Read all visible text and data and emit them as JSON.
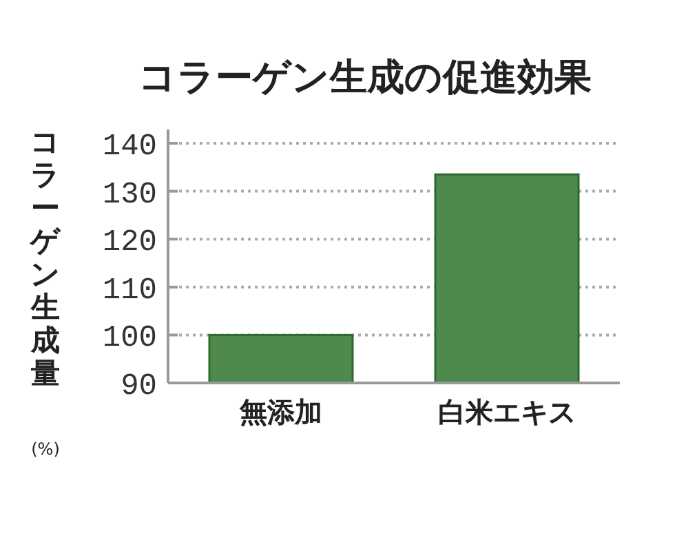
{
  "chart_data": {
    "type": "bar",
    "title": "コラーゲン生成の促進効果",
    "ylabel": "コラーゲン生成量",
    "annotations": [
      "(%)"
    ],
    "categories": [
      "無添加",
      "白米エキス"
    ],
    "values": [
      100,
      133.5
    ],
    "color": "#4e8a4c",
    "ylim": [
      90,
      140
    ],
    "yticks": [
      90,
      100,
      110,
      120,
      130,
      140
    ],
    "grid": "y"
  }
}
